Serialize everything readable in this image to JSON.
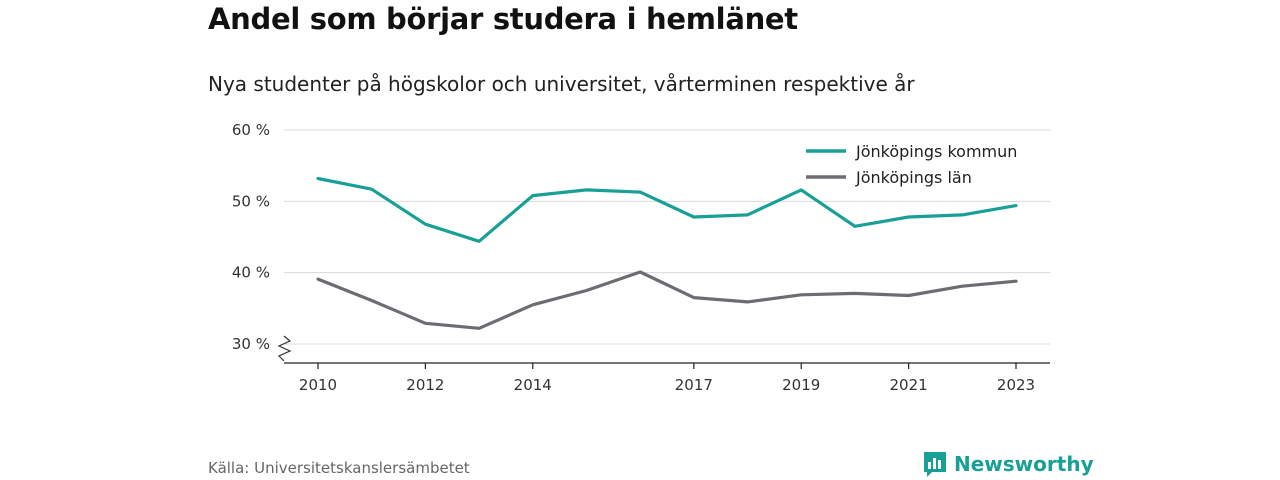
{
  "title": "Andel som börjar studera i hemlänet",
  "subtitle": "Nya studenter på högskolor och universitet, vårterminen respektive år",
  "source": "Källa: Universitetskanslersämbetet",
  "brand": {
    "name": "Newsworthy",
    "icon": "bar-chart-logo-icon",
    "color": "#18a096"
  },
  "colors": {
    "accent": "#18a096",
    "secondary": "#6e6c72",
    "grid": "#d9d9d9"
  },
  "chart_data": {
    "type": "line",
    "title": "Andel som börjar studera i hemlänet",
    "subtitle": "Nya studenter på högskolor och universitet, vårterminen respektive år",
    "x": [
      2010,
      2011,
      2012,
      2013,
      2014,
      2015,
      2016,
      2017,
      2018,
      2019,
      2020,
      2021,
      2022,
      2023
    ],
    "x_ticks": [
      2010,
      2012,
      2014,
      2017,
      2019,
      2021,
      2023
    ],
    "x_tick_labels": [
      "2010",
      "2012",
      "2014",
      "2017",
      "2019",
      "2021",
      "2023"
    ],
    "y_ticks": [
      30,
      40,
      50,
      60
    ],
    "y_tick_labels": [
      "30 %",
      "40 %",
      "50 %",
      "60 %"
    ],
    "ylim": [
      30,
      60
    ],
    "y_axis_break": true,
    "grid": true,
    "legend_position": "top-right",
    "series": [
      {
        "name": "Jönköpings kommun",
        "color": "#18a096",
        "values": [
          53.2,
          51.7,
          46.8,
          44.4,
          50.8,
          51.6,
          51.3,
          47.8,
          48.1,
          51.6,
          46.5,
          47.8,
          48.1,
          49.4
        ]
      },
      {
        "name": "Jönköpings län",
        "color": "#6e6c72",
        "values": [
          39.1,
          36.1,
          32.9,
          32.2,
          35.5,
          37.5,
          40.1,
          36.5,
          35.9,
          36.9,
          37.1,
          36.8,
          38.1,
          38.8
        ]
      }
    ]
  }
}
